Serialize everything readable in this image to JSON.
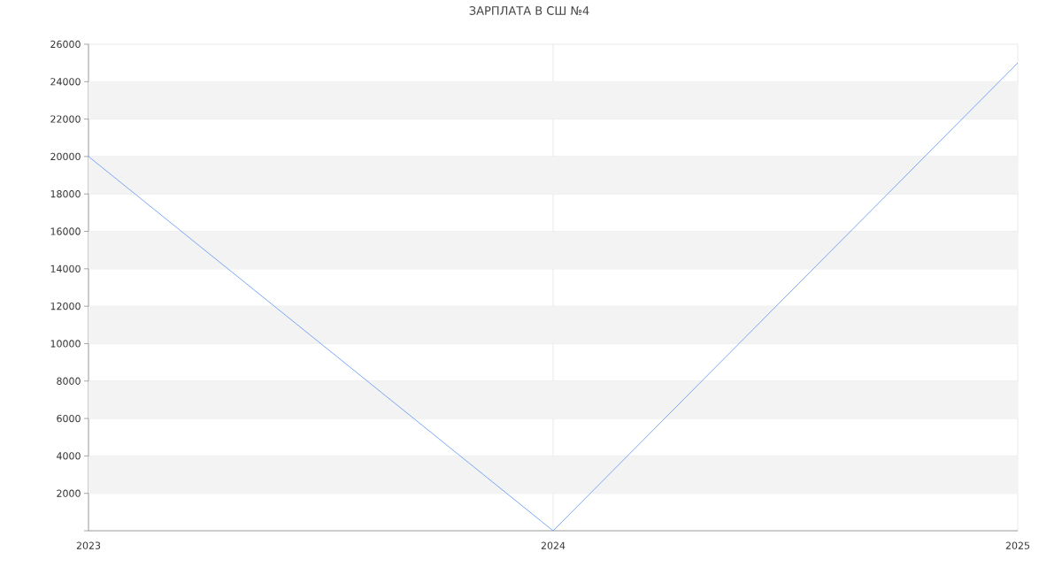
{
  "chart_data": {
    "type": "line",
    "title": "ЗАРПЛАТА В СШ №4",
    "x": [
      2023,
      2024,
      2025
    ],
    "values": [
      20000,
      0,
      25000
    ],
    "color": "#6d9ef5",
    "xlim": [
      2023,
      2025
    ],
    "xticks": [
      2023,
      2024,
      2025
    ],
    "ylim": [
      0,
      26000
    ],
    "yticks": [
      {
        "value": 0,
        "label": null
      },
      2000,
      4000,
      6000,
      8000,
      10000,
      12000,
      14000,
      16000,
      18000,
      20000,
      22000,
      24000,
      26000
    ],
    "grid": true,
    "marker": "none",
    "line_style": "solid",
    "bands": [
      {
        "axis": "y",
        "from": 2000,
        "to": 4000,
        "color": "#f3f3f3"
      },
      {
        "axis": "y",
        "from": 6000,
        "to": 8000,
        "color": "#f3f3f3"
      },
      {
        "axis": "y",
        "from": 10000,
        "to": 12000,
        "color": "#f3f3f3"
      },
      {
        "axis": "y",
        "from": 14000,
        "to": 16000,
        "color": "#f3f3f3"
      },
      {
        "axis": "y",
        "from": 18000,
        "to": 20000,
        "color": "#f3f3f3"
      },
      {
        "axis": "y",
        "from": 22000,
        "to": 24000,
        "color": "#f3f3f3"
      }
    ]
  }
}
